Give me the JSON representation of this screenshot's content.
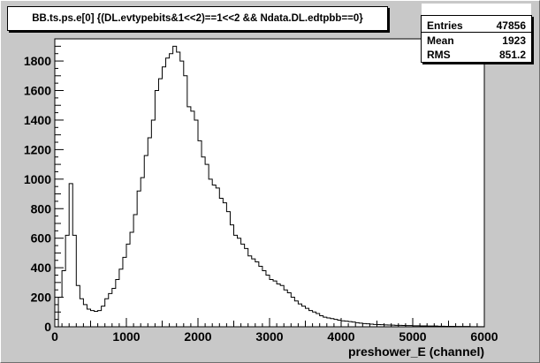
{
  "title": "BB.ts.ps.e[0] {(DL.evtypebits&1<<2)==1<<2 && Ndata.DL.edtpbb==0}",
  "stats": [
    {
      "label": "Entries",
      "value": "47856"
    },
    {
      "label": "Mean",
      "value": "1923"
    },
    {
      "label": "RMS",
      "value": "851.2"
    }
  ],
  "chart_data": {
    "type": "histogram",
    "title": "BB.ts.ps.e[0] {(DL.evtypebits&1<<2)==1<<2 && Ndata.DL.edtpbb==0}",
    "xlabel": "preshower_E (channel)",
    "ylabel": "",
    "xlim": [
      0,
      6000
    ],
    "ylim": [
      0,
      1950
    ],
    "grid": false,
    "legend": "none",
    "line_color": "#000000",
    "x_ticks": [
      0,
      1000,
      2000,
      3000,
      4000,
      5000,
      6000
    ],
    "y_ticks": [
      0,
      200,
      400,
      600,
      800,
      1000,
      1200,
      1400,
      1600,
      1800
    ],
    "bin_width": 50,
    "x_start": 0,
    "values": [
      0,
      200,
      380,
      620,
      970,
      620,
      280,
      190,
      150,
      120,
      110,
      105,
      110,
      140,
      190,
      225,
      260,
      320,
      390,
      470,
      560,
      640,
      760,
      920,
      1010,
      1160,
      1280,
      1400,
      1600,
      1680,
      1760,
      1820,
      1850,
      1900,
      1860,
      1800,
      1700,
      1490,
      1460,
      1400,
      1260,
      1150,
      1100,
      1000,
      960,
      940,
      870,
      840,
      780,
      690,
      620,
      600,
      560,
      530,
      480,
      460,
      440,
      410,
      380,
      350,
      320,
      310,
      290,
      280,
      250,
      230,
      200,
      175,
      155,
      140,
      125,
      110,
      100,
      90,
      75,
      65,
      60,
      55,
      50,
      45,
      40,
      38,
      35,
      32,
      28,
      25,
      22,
      20,
      18,
      16,
      15,
      14,
      13,
      12,
      11,
      10,
      10,
      9,
      8,
      8,
      7,
      7,
      6,
      6,
      5,
      5,
      5,
      4,
      4,
      3,
      3,
      3,
      2,
      2,
      2,
      2,
      1,
      1,
      1,
      1
    ]
  }
}
